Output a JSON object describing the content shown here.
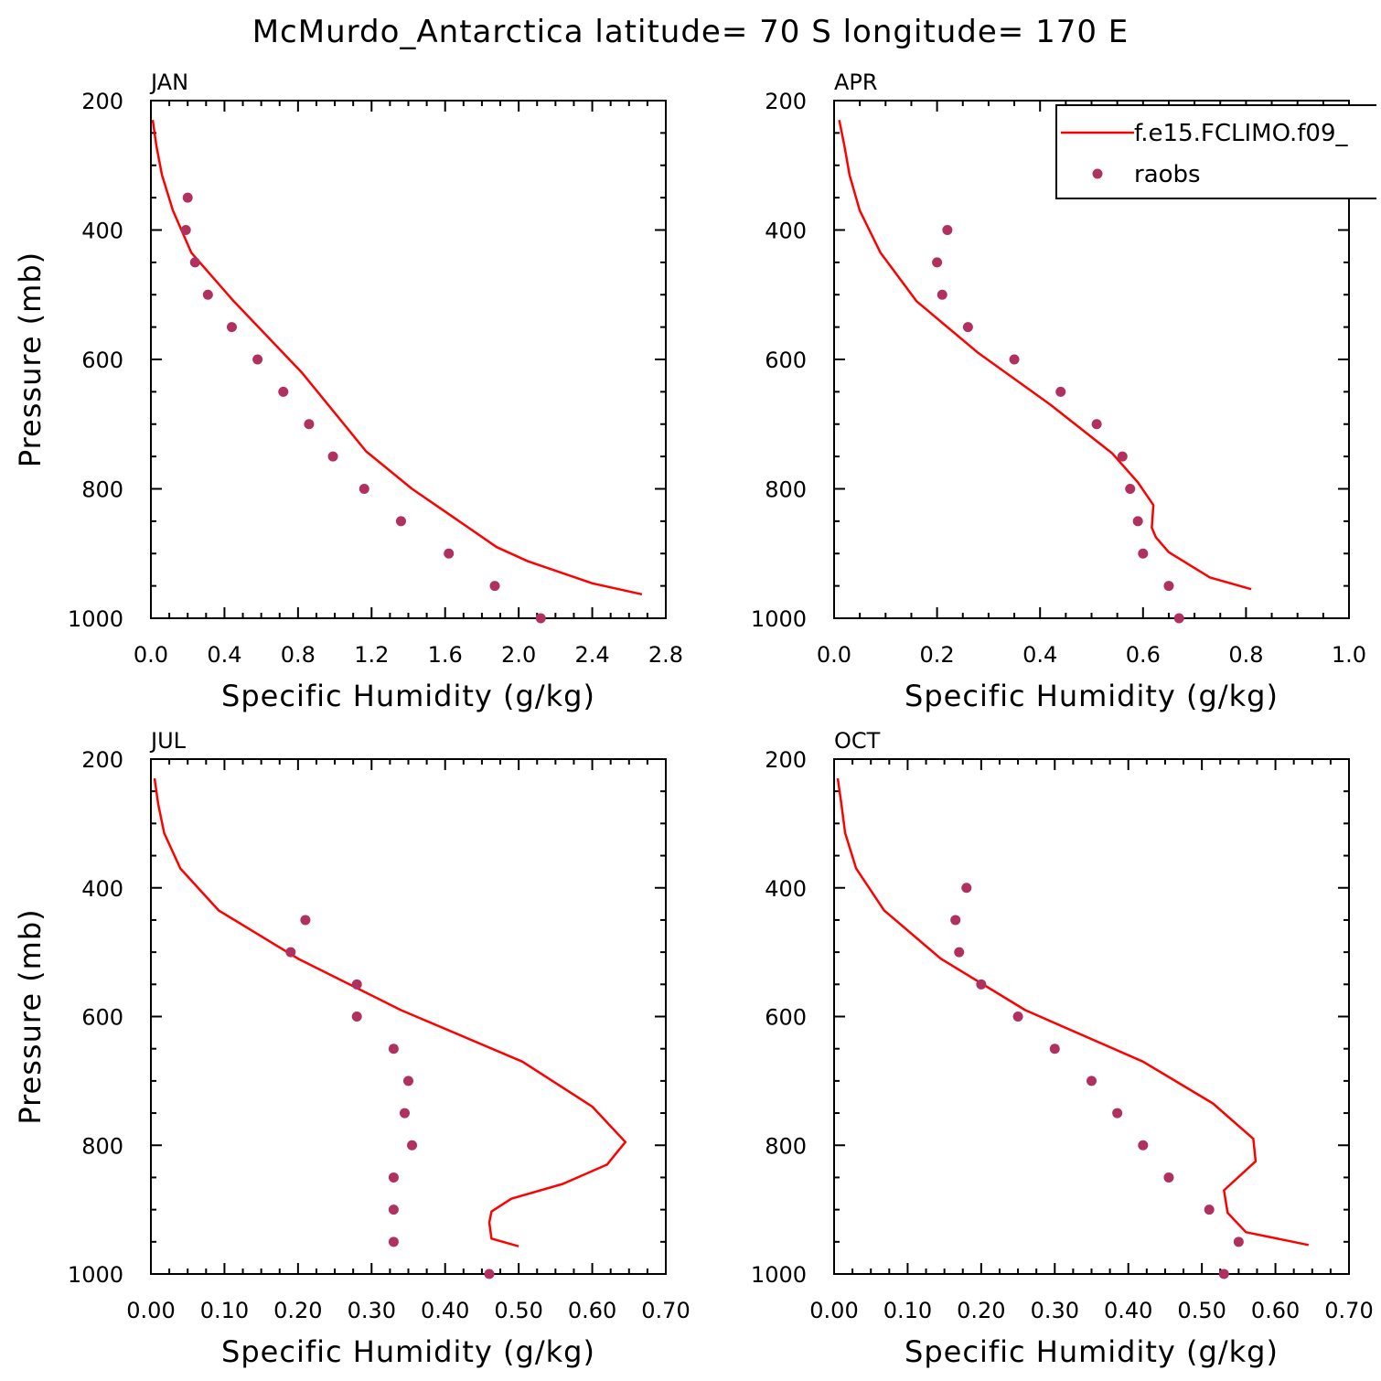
{
  "title": "McMurdo_Antarctica  latitude= 70 S longitude= 170 E",
  "colors": {
    "model_line": "#ff0000",
    "raobs_marker": "#b03060",
    "axes": "#000000"
  },
  "legend": {
    "entries": [
      {
        "label": "f.e15.FCLIMO.f09_",
        "style": "line"
      },
      {
        "label": "raobs",
        "style": "marker"
      }
    ]
  },
  "chart_data": [
    {
      "type": "scatter",
      "panel_label": "JAN",
      "xlabel": "Specific Humidity (g/kg)",
      "ylabel": "Pressure (mb)",
      "xlim": [
        0,
        2.8
      ],
      "ylim": [
        1000,
        200
      ],
      "y_inverted": true,
      "xticks": [
        "0.0",
        "0.4",
        "0.8",
        "1.2",
        "1.6",
        "2.0",
        "2.4",
        "2.8"
      ],
      "yticks": [
        "200",
        "400",
        "600",
        "800",
        "1000"
      ],
      "series": [
        {
          "name": "f.e15.FCLIMO.f09_",
          "style": "line",
          "x": [
            0.01,
            0.03,
            0.06,
            0.12,
            0.22,
            0.45,
            0.82,
            1.17,
            1.42,
            1.65,
            1.88,
            2.05,
            2.4,
            2.67
          ],
          "y": [
            230,
            270,
            315,
            370,
            435,
            510,
            620,
            742,
            800,
            845,
            890,
            912,
            946,
            963
          ]
        },
        {
          "name": "raobs",
          "style": "marker",
          "x": [
            0.2,
            0.19,
            0.24,
            0.31,
            0.44,
            0.58,
            0.72,
            0.86,
            0.99,
            1.16,
            1.36,
            1.62,
            1.87,
            2.12
          ],
          "y": [
            350,
            400,
            450,
            500,
            550,
            600,
            650,
            700,
            750,
            800,
            850,
            900,
            950,
            1000
          ]
        }
      ]
    },
    {
      "type": "scatter",
      "panel_label": "APR",
      "xlabel": "Specific Humidity (g/kg)",
      "ylabel": "",
      "xlim": [
        0,
        1.0
      ],
      "ylim": [
        1000,
        200
      ],
      "y_inverted": true,
      "xticks": [
        "0.0",
        "0.2",
        "0.4",
        "0.6",
        "0.8",
        "1.0"
      ],
      "yticks": [
        "200",
        "400",
        "600",
        "800",
        "1000"
      ],
      "series": [
        {
          "name": "f.e15.FCLIMO.f09_",
          "style": "line",
          "x": [
            0.01,
            0.02,
            0.03,
            0.05,
            0.09,
            0.16,
            0.28,
            0.42,
            0.54,
            0.59,
            0.62,
            0.617,
            0.625,
            0.65,
            0.73,
            0.81
          ],
          "y": [
            230,
            270,
            315,
            370,
            435,
            510,
            590,
            670,
            745,
            790,
            825,
            860,
            875,
            898,
            937,
            955
          ]
        },
        {
          "name": "raobs",
          "style": "marker",
          "x": [
            0.22,
            0.2,
            0.21,
            0.26,
            0.35,
            0.44,
            0.51,
            0.56,
            0.575,
            0.59,
            0.6,
            0.65,
            0.67
          ],
          "y": [
            400,
            450,
            500,
            550,
            600,
            650,
            700,
            750,
            800,
            850,
            900,
            950,
            1000
          ]
        }
      ]
    },
    {
      "type": "scatter",
      "panel_label": "JUL",
      "xlabel": "Specific Humidity (g/kg)",
      "ylabel": "Pressure (mb)",
      "xlim": [
        0,
        0.7
      ],
      "ylim": [
        1000,
        200
      ],
      "y_inverted": true,
      "xticks": [
        "0.00",
        "0.10",
        "0.20",
        "0.30",
        "0.40",
        "0.50",
        "0.60",
        "0.70"
      ],
      "yticks": [
        "200",
        "400",
        "600",
        "800",
        "1000"
      ],
      "series": [
        {
          "name": "f.e15.FCLIMO.f09_",
          "style": "line",
          "x": [
            0.005,
            0.01,
            0.018,
            0.04,
            0.092,
            0.2,
            0.34,
            0.505,
            0.6,
            0.645,
            0.62,
            0.56,
            0.49,
            0.463,
            0.46,
            0.463,
            0.5
          ],
          "y": [
            230,
            270,
            315,
            370,
            435,
            510,
            590,
            670,
            740,
            795,
            830,
            860,
            883,
            903,
            920,
            945,
            957
          ]
        },
        {
          "name": "raobs",
          "style": "marker",
          "x": [
            0.21,
            0.19,
            0.28,
            0.28,
            0.33,
            0.35,
            0.345,
            0.355,
            0.33,
            0.33,
            0.33,
            0.46
          ],
          "y": [
            450,
            500,
            550,
            600,
            650,
            700,
            750,
            800,
            850,
            900,
            950,
            1000
          ]
        }
      ]
    },
    {
      "type": "scatter",
      "panel_label": "OCT",
      "xlabel": "Specific Humidity (g/kg)",
      "ylabel": "",
      "xlim": [
        0,
        0.7
      ],
      "ylim": [
        1000,
        200
      ],
      "y_inverted": true,
      "xticks": [
        "0.00",
        "0.10",
        "0.20",
        "0.30",
        "0.40",
        "0.50",
        "0.60",
        "0.70"
      ],
      "yticks": [
        "200",
        "400",
        "600",
        "800",
        "1000"
      ],
      "series": [
        {
          "name": "f.e15.FCLIMO.f09_",
          "style": "line",
          "x": [
            0.005,
            0.01,
            0.015,
            0.03,
            0.068,
            0.145,
            0.26,
            0.42,
            0.515,
            0.57,
            0.573,
            0.53,
            0.535,
            0.56,
            0.645
          ],
          "y": [
            230,
            270,
            315,
            370,
            435,
            510,
            590,
            670,
            735,
            790,
            825,
            870,
            905,
            935,
            955
          ]
        },
        {
          "name": "raobs",
          "style": "marker",
          "x": [
            0.18,
            0.165,
            0.17,
            0.2,
            0.25,
            0.3,
            0.35,
            0.385,
            0.42,
            0.455,
            0.51,
            0.55,
            0.53
          ],
          "y": [
            400,
            450,
            500,
            550,
            600,
            650,
            700,
            750,
            800,
            850,
            900,
            950,
            1000
          ]
        }
      ]
    }
  ]
}
